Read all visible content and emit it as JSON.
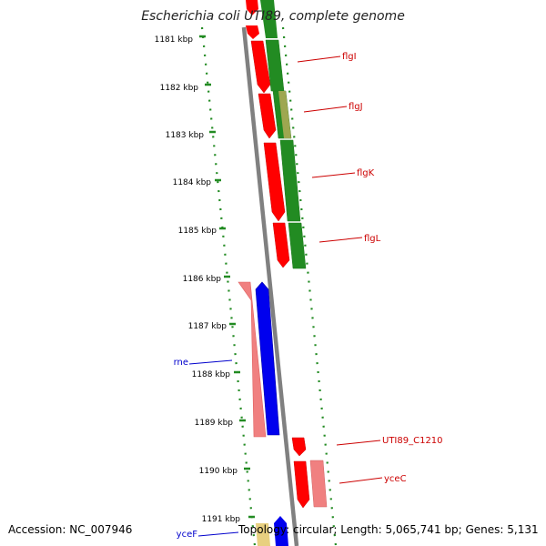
{
  "title": "Escherichia coli UTI89, complete genome",
  "footer": {
    "accession": "Accession: NC_007946",
    "summary": "Topology: circular; Length: 5,065,741 bp; Genes: 5,131"
  },
  "colors": {
    "backbone": "#808080",
    "tick": "#228B22",
    "forward_gene": "#FF0000",
    "forward_cds": "#228B22",
    "reverse_gene": "#F08080",
    "reverse_cds": "#0000FF",
    "pseudo": "#E8D080",
    "label_red": "#CC0000",
    "label_blue": "#0000CC"
  },
  "ruler": {
    "unit": "kbp",
    "labels": [
      "1181 kbp",
      "1182 kbp",
      "1183 kbp",
      "1184 kbp",
      "1185 kbp",
      "1186 kbp",
      "1187 kbp",
      "1188 kbp",
      "1189 kbp",
      "1190 kbp",
      "1191 kbp"
    ]
  },
  "genes": [
    {
      "name": "flgI",
      "label_color": "red"
    },
    {
      "name": "flgJ",
      "label_color": "red"
    },
    {
      "name": "flgK",
      "label_color": "red"
    },
    {
      "name": "flgL",
      "label_color": "red"
    },
    {
      "name": "rne",
      "label_color": "blue"
    },
    {
      "name": "UTI89_C1210",
      "label_color": "red"
    },
    {
      "name": "yceC",
      "label_color": "red"
    },
    {
      "name": "yceF",
      "label_color": "blue"
    }
  ]
}
